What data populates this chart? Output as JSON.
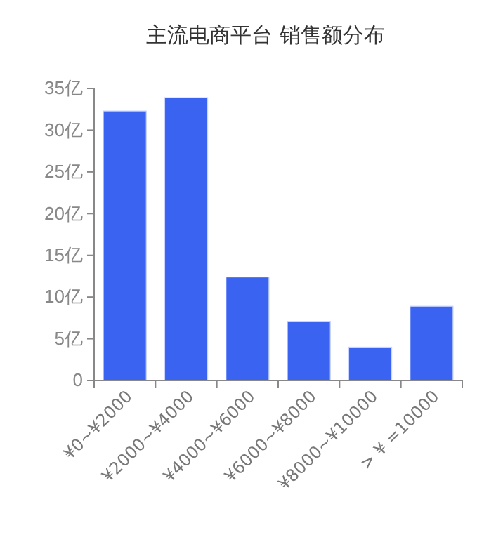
{
  "chart_data": {
    "type": "bar",
    "title": "主流电商平台  销售额分布",
    "categories": [
      "¥0~¥2000",
      "¥2000~¥4000",
      "¥4000~¥6000",
      "¥6000~¥8000",
      "¥8000~¥10000",
      "> ¥ =10000"
    ],
    "values": [
      32.3,
      33.9,
      12.4,
      7.1,
      4.0,
      8.9
    ],
    "color": "#3a63f2",
    "ylim": [
      0,
      35
    ],
    "yticks": [
      0,
      {
        "value": 5,
        "label": "5亿"
      },
      {
        "value": 10,
        "label": "10亿"
      },
      {
        "value": 15,
        "label": "15亿"
      },
      {
        "value": 20,
        "label": "20亿"
      },
      {
        "value": 25,
        "label": "25亿"
      },
      {
        "value": 30,
        "label": "30亿"
      },
      {
        "value": 35,
        "label": "35亿"
      }
    ],
    "grid": false
  }
}
